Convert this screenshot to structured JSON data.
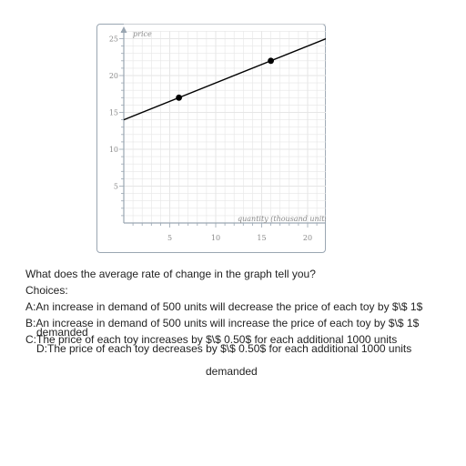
{
  "question": {
    "prompt": "What does the average rate of change in the graph tell you?",
    "choices_label": "Choices:",
    "choices": [
      "A:An increase in demand of 500 units will decrease the price of each toy by $\\$ 1$",
      "B:An increase in demand of 500 units will increase the price of each toy by $\\$ 1$",
      "C:The price of each toy increases by $\\$ 0.50$ for each additional 1000 units",
      "demanded",
      "D:The price of each toy decreases by $\\$ 0.50$ for each additional 1000 units",
      "demanded"
    ]
  },
  "chart_data": {
    "type": "line",
    "xlabel": "quantity (thousand units)",
    "ylabel": "price",
    "xlim": [
      0,
      22
    ],
    "ylim": [
      0,
      27
    ],
    "x_ticks": [
      5,
      10,
      15,
      20
    ],
    "y_ticks": [
      5,
      10,
      15,
      20,
      25
    ],
    "grid": true,
    "line": {
      "x": [
        0,
        22
      ],
      "y": [
        14,
        25
      ]
    },
    "points": [
      {
        "x": 6,
        "y": 17
      },
      {
        "x": 16,
        "y": 22
      }
    ],
    "colors": {
      "line": "#000000",
      "grid": "#e6e6e6",
      "axis": "#9aa6b2"
    }
  }
}
